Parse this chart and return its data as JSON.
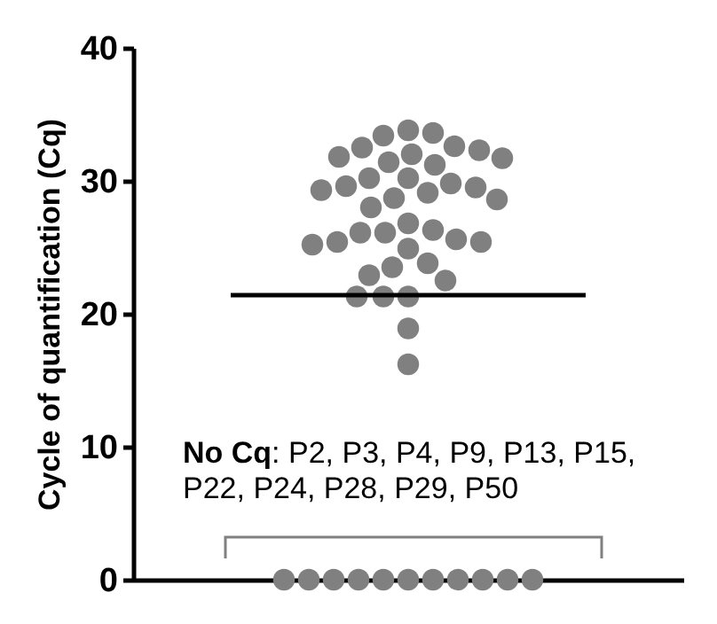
{
  "chart_data": {
    "type": "scatter",
    "categories": [
      null
    ],
    "ylabel": "Cycle of quantification (Cq)",
    "ylim": [
      0,
      40
    ],
    "yticks": [
      0,
      10,
      20,
      30,
      40
    ],
    "tick_labels": "y",
    "grid": false,
    "marker": "circle",
    "annotations": [
      "No Cq: P2, P3, P4, P9, P13, P15, P22, P24, P28, P29, P50"
    ],
    "ref_lines": [
      {
        "axis": "y",
        "value": 21.4,
        "color": "#000000"
      }
    ],
    "series": [
      {
        "color": "#808080",
        "x": [
          null,
          null,
          null,
          null,
          null,
          null,
          null,
          null,
          null,
          null,
          null,
          null,
          null,
          null,
          null,
          null,
          null,
          null,
          null,
          null,
          null,
          null,
          null,
          null,
          null,
          null,
          null,
          null,
          null,
          null,
          null,
          null,
          null,
          null,
          null,
          null,
          null,
          null,
          null,
          null,
          null,
          null,
          null,
          null,
          null,
          null,
          null,
          null,
          null,
          null
        ],
        "values": [
          33.8,
          33.6,
          33.4,
          32.6,
          32.5,
          32.3,
          32.0,
          31.8,
          31.7,
          31.4,
          31.2,
          30.2,
          30.2,
          29.8,
          29.6,
          29.5,
          29.3,
          29.1,
          28.7,
          28.6,
          28.0,
          26.8,
          26.3,
          26.1,
          26.1,
          25.6,
          25.4,
          25.4,
          25.2,
          24.9,
          23.8,
          23.5,
          22.9,
          22.5,
          21.3,
          21.3,
          21.3,
          18.9,
          16.2,
          0,
          0,
          0,
          0,
          0,
          0,
          0,
          0,
          0,
          0,
          0
        ]
      }
    ]
  }
}
